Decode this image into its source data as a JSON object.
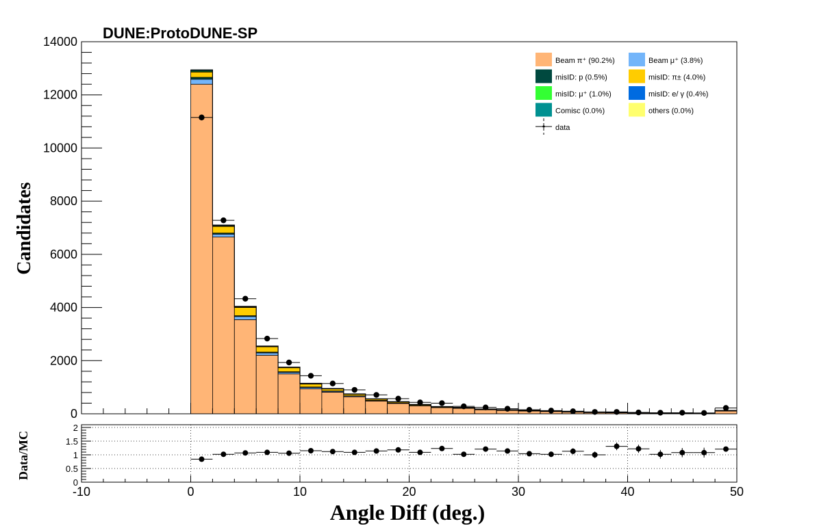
{
  "chart_data": {
    "type": "bar",
    "title": "DUNE:ProtoDUNE-SP",
    "xlabel": "Angle Diff (deg.)",
    "ylabel": "Candidates",
    "xlim": [
      -10,
      50
    ],
    "ylim": [
      0,
      14000
    ],
    "x_ticks": [
      -10,
      0,
      10,
      20,
      30,
      40,
      50
    ],
    "y_ticks": [
      0,
      2000,
      4000,
      6000,
      8000,
      10000,
      12000,
      14000
    ],
    "bin_edges": [
      0,
      2,
      4,
      6,
      8,
      10,
      12,
      14,
      16,
      18,
      20,
      22,
      24,
      26,
      28,
      30,
      32,
      34,
      36,
      38,
      40,
      42,
      44,
      46,
      48,
      50
    ],
    "legend": [
      {
        "key": "beam_pi",
        "label": "Beam  π⁺ (90.2%)",
        "color": "#FFB576"
      },
      {
        "key": "beam_mu",
        "label": "Beam  μ⁺ (3.8%)",
        "color": "#73B5FA"
      },
      {
        "key": "misid_p",
        "label": "misID: p (0.5%)",
        "color": "#00493F"
      },
      {
        "key": "misid_pi",
        "label": "misID:  π± (4.0%)",
        "color": "#FFCC00"
      },
      {
        "key": "misid_mu",
        "label": "misID:  μ⁺ (1.0%)",
        "color": "#33FF33"
      },
      {
        "key": "misid_eg",
        "label": "misID: e/ γ (0.4%)",
        "color": "#006BE0"
      },
      {
        "key": "comisc",
        "label": "Comisc (0.0%)",
        "color": "#009191"
      },
      {
        "key": "others",
        "label": "others (0.0%)",
        "color": "#FFFF6E"
      },
      {
        "key": "data",
        "label": "data",
        "color": "#000000"
      }
    ],
    "legend_position": "top-right",
    "stack": [
      {
        "name": "Beam  π⁺ (90.2%)",
        "color": "#FFB576",
        "values": [
          12400,
          6650,
          3540,
          2200,
          1500,
          940,
          810,
          640,
          480,
          390,
          300,
          230,
          205,
          150,
          125,
          105,
          85,
          65,
          45,
          40,
          30,
          28,
          25,
          20,
          105
        ]
      },
      {
        "name": "Beam  μ⁺ (3.8%)",
        "color": "#73B5FA",
        "values": [
          190,
          110,
          120,
          90,
          62,
          50,
          35,
          27,
          20,
          16,
          12,
          10,
          8,
          7,
          6,
          5,
          4,
          4,
          3,
          3,
          2,
          2,
          2,
          1,
          5
        ]
      },
      {
        "name": "misID: p (0.5%)",
        "color": "#00493F",
        "values": [
          70,
          40,
          30,
          30,
          20,
          18,
          14,
          10,
          8,
          6,
          5,
          4,
          3,
          3,
          2,
          2,
          2,
          1,
          1,
          1,
          1,
          1,
          1,
          1,
          3
        ]
      },
      {
        "name": "misID:  π± (4.0%)",
        "color": "#FFCC00",
        "values": [
          200,
          250,
          310,
          200,
          150,
          110,
          75,
          58,
          45,
          35,
          27,
          23,
          18,
          15,
          12,
          10,
          8,
          6,
          5,
          4,
          3,
          3,
          3,
          2,
          10
        ]
      },
      {
        "name": "misID:  μ⁺ (1.0%)",
        "color": "#33FF33",
        "values": [
          30,
          20,
          15,
          8,
          7,
          5,
          4,
          3,
          2,
          2,
          2,
          1,
          1,
          1,
          1,
          1,
          1,
          1,
          1,
          1,
          1,
          1,
          1,
          1,
          1
        ]
      },
      {
        "name": "misID: e/ γ (0.4%)",
        "color": "#006BE0",
        "values": [
          10,
          6,
          5,
          4,
          3,
          2,
          2,
          2,
          1,
          1,
          1,
          1,
          1,
          1,
          1,
          1,
          1,
          1,
          1,
          1,
          1,
          1,
          1,
          1,
          1
        ]
      },
      {
        "name": "Comisc (0.0%)",
        "color": "#009191",
        "values": [
          40,
          25,
          20,
          15,
          12,
          20,
          10,
          8,
          6,
          5,
          4,
          3,
          3,
          3,
          2,
          2,
          2,
          1,
          1,
          1,
          1,
          1,
          1,
          1,
          1
        ]
      },
      {
        "name": "others (0.0%)",
        "color": "#FFFF6E",
        "values": [
          0,
          0,
          0,
          0,
          0,
          0,
          0,
          0,
          0,
          0,
          0,
          0,
          0,
          0,
          0,
          0,
          0,
          0,
          0,
          0,
          0,
          0,
          0,
          0,
          0
        ]
      }
    ],
    "data": {
      "name": "data",
      "x": [
        1,
        3,
        5,
        7,
        9,
        11,
        13,
        15,
        17,
        19,
        21,
        23,
        25,
        27,
        29,
        31,
        33,
        35,
        37,
        39,
        41,
        43,
        45,
        47,
        49
      ],
      "y": [
        11150,
        7280,
        4330,
        2830,
        1930,
        1430,
        1140,
        900,
        710,
        570,
        430,
        400,
        280,
        240,
        190,
        150,
        120,
        95,
        70,
        70,
        50,
        40,
        40,
        30,
        220
      ],
      "yerr": [
        106,
        85,
        66,
        53,
        44,
        38,
        34,
        30,
        27,
        24,
        21,
        20,
        17,
        15,
        14,
        12,
        11,
        10,
        8,
        8,
        7,
        6,
        6,
        5,
        15
      ]
    },
    "ratio": {
      "ylabel": "Data/MC",
      "ylim": [
        0,
        2.1
      ],
      "y_ticks": [
        0,
        0.5,
        1,
        1.5,
        2
      ],
      "y_tick_labels": [
        "0",
        "0.5",
        "1",
        "1.5",
        "2"
      ],
      "grid": true,
      "values": [
        0.84,
        1.02,
        1.07,
        1.09,
        1.06,
        1.15,
        1.12,
        1.09,
        1.14,
        1.18,
        1.09,
        1.23,
        1.02,
        1.21,
        1.14,
        1.04,
        1.02,
        1.13,
        1.0,
        1.31,
        1.22,
        1.02,
        1.08,
        1.08,
        1.21
      ],
      "errors": [
        0.02,
        0.02,
        0.03,
        0.03,
        0.03,
        0.04,
        0.04,
        0.04,
        0.05,
        0.05,
        0.06,
        0.07,
        0.07,
        0.08,
        0.08,
        0.09,
        0.1,
        0.11,
        0.12,
        0.14,
        0.15,
        0.16,
        0.17,
        0.18,
        0.09
      ]
    }
  }
}
